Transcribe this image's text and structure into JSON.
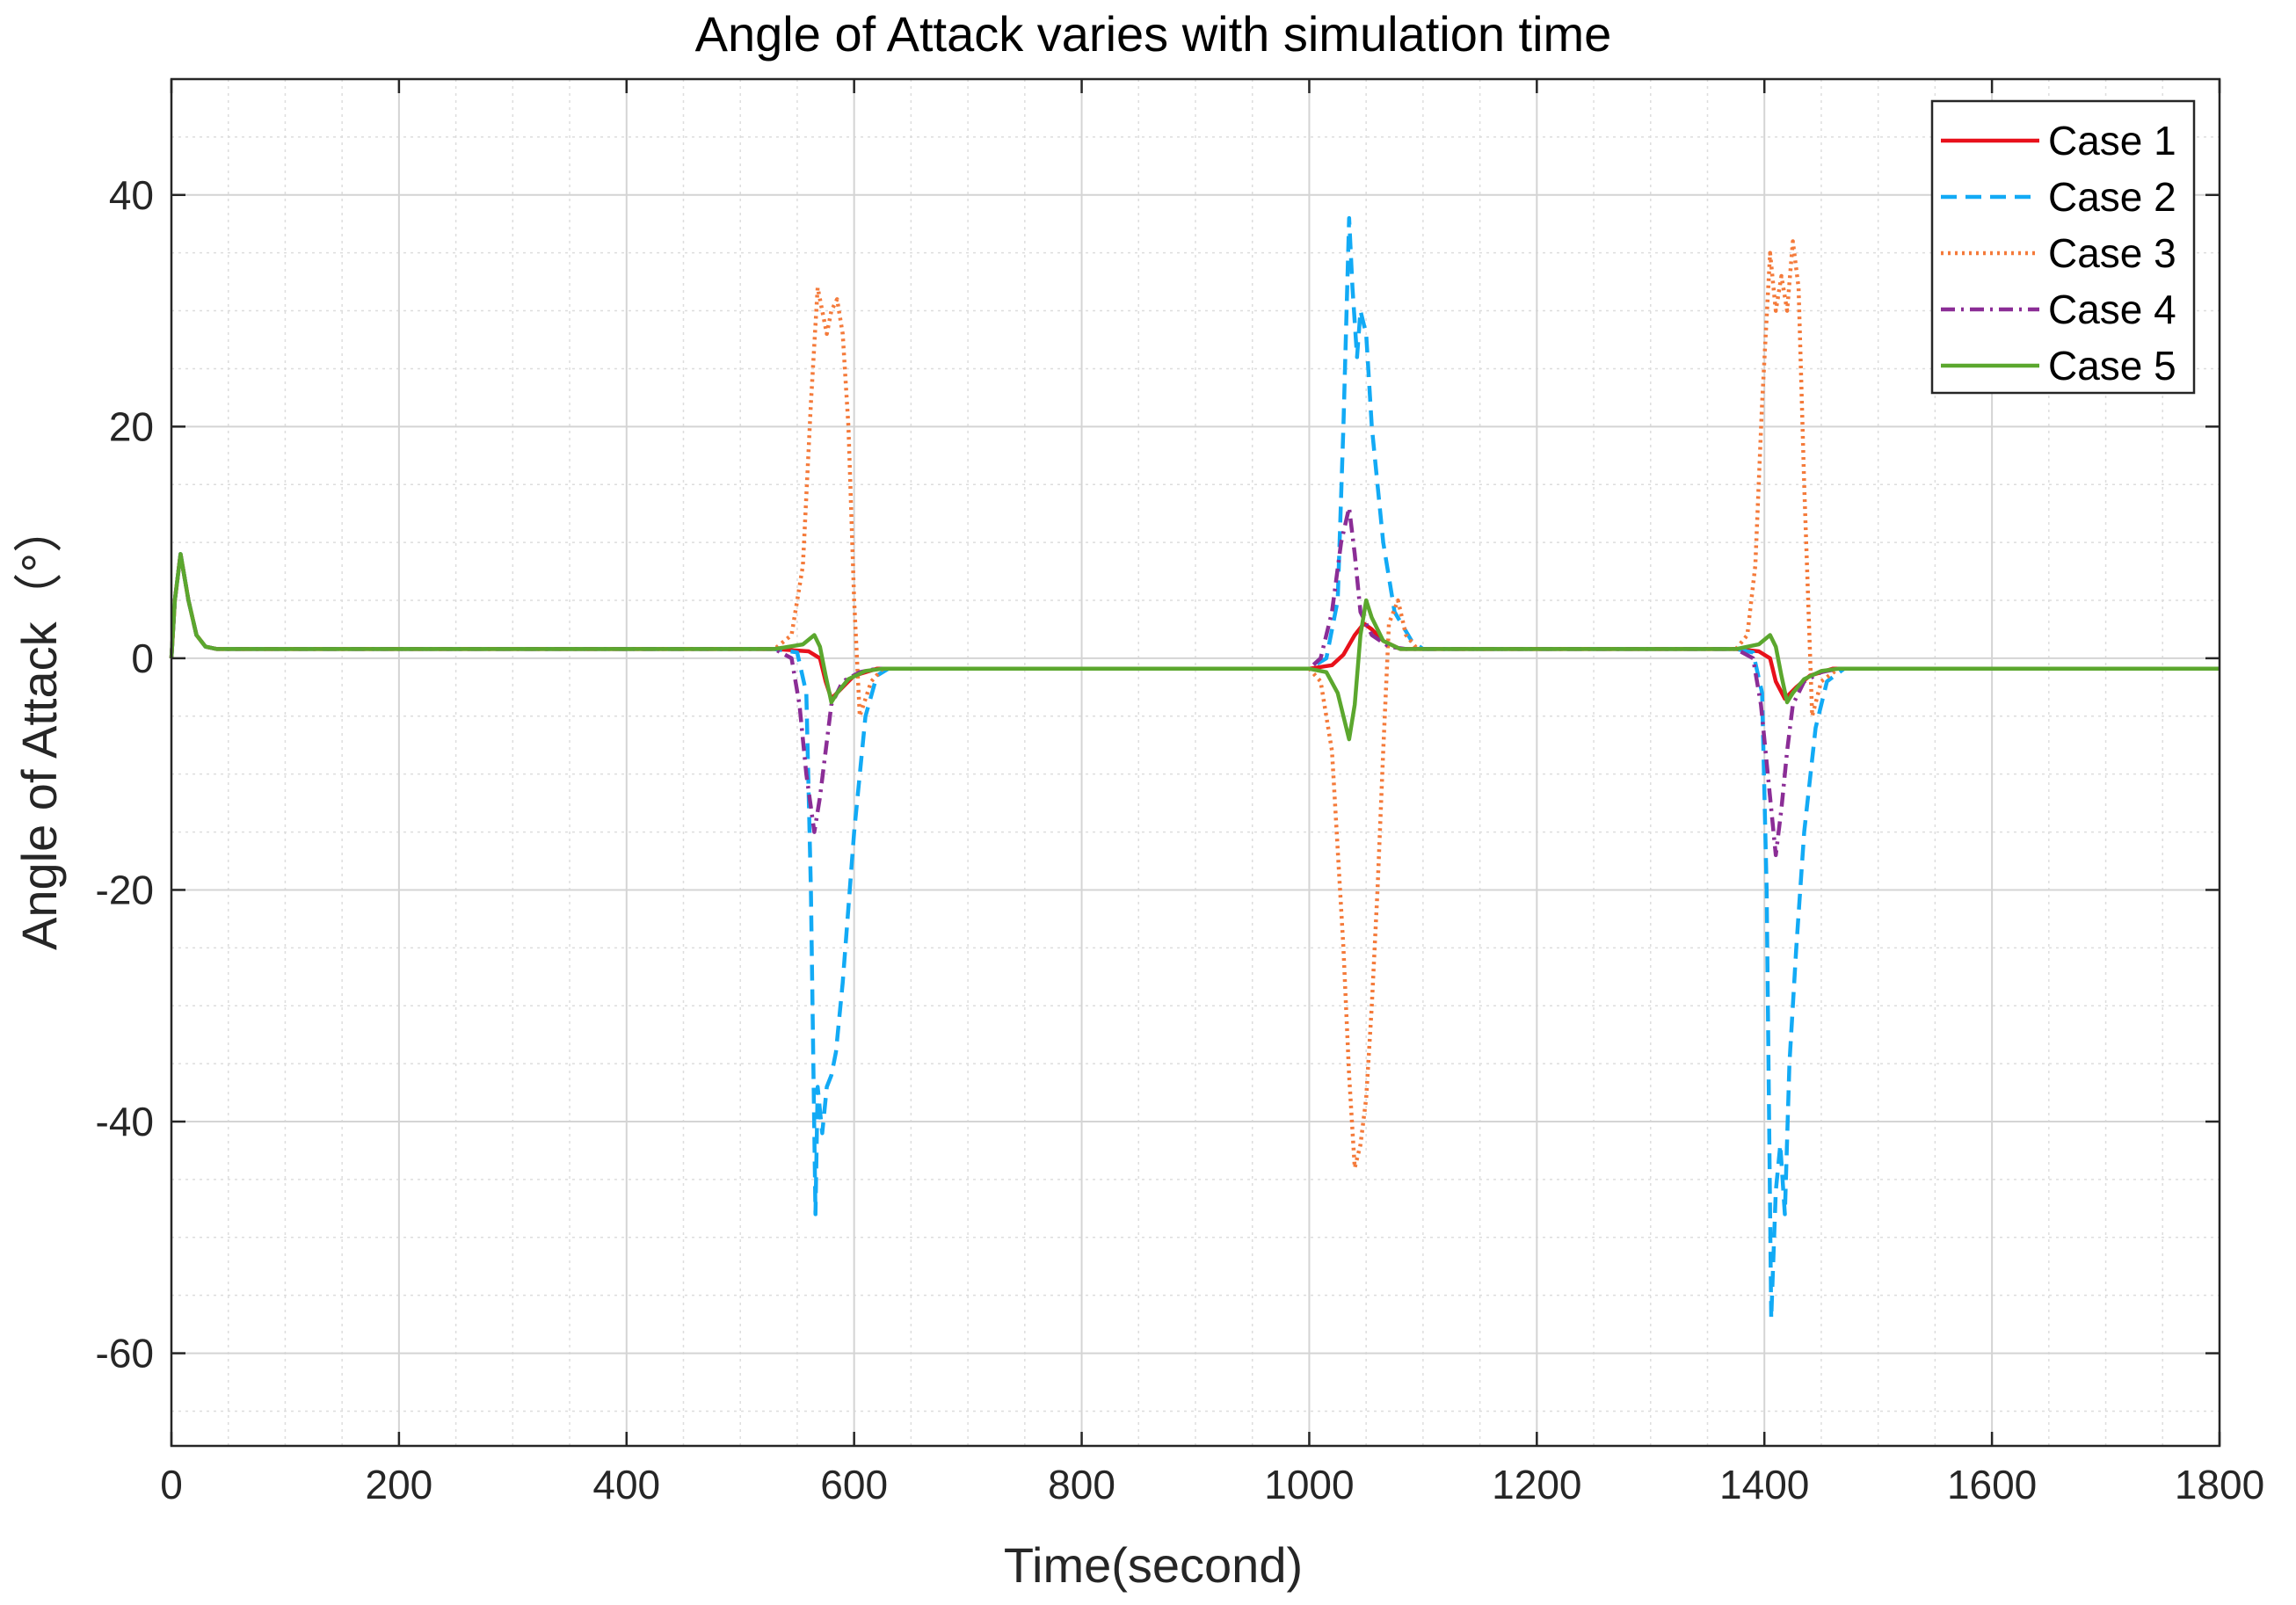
{
  "chart_data": {
    "type": "line",
    "title": "Angle of Attack varies with simulation time",
    "xlabel": "Time(second)",
    "ylabel": "Angle of Attack（°）",
    "xlim": [
      0,
      1800
    ],
    "ylim": [
      -68,
      50
    ],
    "xticks": [
      0,
      200,
      400,
      600,
      800,
      1000,
      1200,
      1400,
      1600,
      1800
    ],
    "yticks": [
      -60,
      -40,
      -20,
      0,
      20,
      40
    ],
    "grid": true,
    "minor_grid": true,
    "legend_position": "top-right",
    "series": [
      {
        "name": "Case 1",
        "color": "#e8111b",
        "dash": "solid",
        "points": [
          [
            0,
            0
          ],
          [
            3,
            5
          ],
          [
            8,
            9
          ],
          [
            15,
            5
          ],
          [
            22,
            2
          ],
          [
            30,
            1
          ],
          [
            40,
            0.8
          ],
          [
            530,
            0.8
          ],
          [
            560,
            0.6
          ],
          [
            570,
            0
          ],
          [
            575,
            -2
          ],
          [
            580,
            -3.5
          ],
          [
            590,
            -2.5
          ],
          [
            600,
            -1.5
          ],
          [
            620,
            -0.9
          ],
          [
            1000,
            -0.9
          ],
          [
            1020,
            -0.6
          ],
          [
            1030,
            0.3
          ],
          [
            1040,
            2
          ],
          [
            1048,
            3
          ],
          [
            1055,
            2.5
          ],
          [
            1065,
            1.5
          ],
          [
            1080,
            0.8
          ],
          [
            1375,
            0.8
          ],
          [
            1395,
            0.6
          ],
          [
            1405,
            0
          ],
          [
            1410,
            -2
          ],
          [
            1418,
            -3.5
          ],
          [
            1428,
            -2.5
          ],
          [
            1440,
            -1.5
          ],
          [
            1460,
            -0.9
          ],
          [
            1800,
            -0.9
          ]
        ]
      },
      {
        "name": "Case 2",
        "color": "#12aaf5",
        "dash": "dashed",
        "points": [
          [
            0,
            0
          ],
          [
            3,
            5
          ],
          [
            8,
            9
          ],
          [
            15,
            5
          ],
          [
            22,
            2
          ],
          [
            30,
            1
          ],
          [
            40,
            0.8
          ],
          [
            530,
            0.8
          ],
          [
            550,
            0.5
          ],
          [
            558,
            -3
          ],
          [
            562,
            -20
          ],
          [
            566,
            -48
          ],
          [
            568,
            -37
          ],
          [
            572,
            -41
          ],
          [
            576,
            -37
          ],
          [
            580,
            -36
          ],
          [
            584,
            -34
          ],
          [
            590,
            -28
          ],
          [
            600,
            -15
          ],
          [
            610,
            -5
          ],
          [
            620,
            -1.5
          ],
          [
            630,
            -0.9
          ],
          [
            1000,
            -0.9
          ],
          [
            1015,
            0
          ],
          [
            1025,
            5
          ],
          [
            1030,
            20
          ],
          [
            1035,
            38
          ],
          [
            1038,
            32
          ],
          [
            1042,
            26
          ],
          [
            1045,
            30
          ],
          [
            1050,
            28
          ],
          [
            1055,
            20
          ],
          [
            1065,
            10
          ],
          [
            1075,
            4
          ],
          [
            1090,
            1.5
          ],
          [
            1100,
            0.8
          ],
          [
            1375,
            0.8
          ],
          [
            1390,
            0.5
          ],
          [
            1398,
            -3
          ],
          [
            1402,
            -20
          ],
          [
            1406,
            -57
          ],
          [
            1410,
            -46
          ],
          [
            1414,
            -42
          ],
          [
            1418,
            -48
          ],
          [
            1422,
            -35
          ],
          [
            1428,
            -25
          ],
          [
            1435,
            -15
          ],
          [
            1445,
            -6
          ],
          [
            1455,
            -2
          ],
          [
            1470,
            -0.9
          ],
          [
            1800,
            -0.9
          ]
        ]
      },
      {
        "name": "Case 3",
        "color": "#f47a3a",
        "dash": "dotted",
        "points": [
          [
            0,
            0
          ],
          [
            3,
            5
          ],
          [
            8,
            9
          ],
          [
            15,
            5
          ],
          [
            22,
            2
          ],
          [
            30,
            1
          ],
          [
            40,
            0.8
          ],
          [
            530,
            0.8
          ],
          [
            545,
            2
          ],
          [
            555,
            8
          ],
          [
            562,
            22
          ],
          [
            568,
            32
          ],
          [
            572,
            30
          ],
          [
            576,
            28
          ],
          [
            580,
            30
          ],
          [
            585,
            31
          ],
          [
            590,
            28
          ],
          [
            595,
            20
          ],
          [
            600,
            5
          ],
          [
            605,
            -5
          ],
          [
            615,
            -2
          ],
          [
            625,
            -0.9
          ],
          [
            1000,
            -0.9
          ],
          [
            1010,
            -2
          ],
          [
            1020,
            -8
          ],
          [
            1030,
            -25
          ],
          [
            1035,
            -36
          ],
          [
            1040,
            -44
          ],
          [
            1045,
            -42
          ],
          [
            1050,
            -38
          ],
          [
            1055,
            -30
          ],
          [
            1060,
            -20
          ],
          [
            1065,
            -8
          ],
          [
            1070,
            3
          ],
          [
            1078,
            5
          ],
          [
            1085,
            2
          ],
          [
            1095,
            0.8
          ],
          [
            1375,
            0.8
          ],
          [
            1385,
            2
          ],
          [
            1392,
            8
          ],
          [
            1398,
            22
          ],
          [
            1405,
            35
          ],
          [
            1410,
            30
          ],
          [
            1415,
            33
          ],
          [
            1420,
            30
          ],
          [
            1425,
            36
          ],
          [
            1430,
            32
          ],
          [
            1435,
            15
          ],
          [
            1442,
            -5
          ],
          [
            1450,
            -2
          ],
          [
            1465,
            -0.9
          ],
          [
            1800,
            -0.9
          ]
        ]
      },
      {
        "name": "Case 4",
        "color": "#8b2d96",
        "dash": "dashdot",
        "points": [
          [
            0,
            0
          ],
          [
            3,
            5
          ],
          [
            8,
            9
          ],
          [
            15,
            5
          ],
          [
            22,
            2
          ],
          [
            30,
            1
          ],
          [
            40,
            0.8
          ],
          [
            530,
            0.8
          ],
          [
            545,
            0
          ],
          [
            552,
            -4
          ],
          [
            558,
            -10
          ],
          [
            565,
            -15
          ],
          [
            570,
            -12
          ],
          [
            575,
            -8
          ],
          [
            580,
            -4
          ],
          [
            590,
            -2
          ],
          [
            605,
            -1.2
          ],
          [
            620,
            -0.9
          ],
          [
            1000,
            -0.9
          ],
          [
            1010,
            0
          ],
          [
            1020,
            4
          ],
          [
            1028,
            10
          ],
          [
            1035,
            13
          ],
          [
            1040,
            9
          ],
          [
            1045,
            4
          ],
          [
            1055,
            2
          ],
          [
            1070,
            1
          ],
          [
            1085,
            0.8
          ],
          [
            1375,
            0.8
          ],
          [
            1390,
            0
          ],
          [
            1397,
            -4
          ],
          [
            1403,
            -10
          ],
          [
            1410,
            -17
          ],
          [
            1415,
            -13
          ],
          [
            1420,
            -8
          ],
          [
            1425,
            -4
          ],
          [
            1435,
            -2
          ],
          [
            1450,
            -1.2
          ],
          [
            1465,
            -0.9
          ],
          [
            1800,
            -0.9
          ]
        ]
      },
      {
        "name": "Case 5",
        "color": "#5ba72e",
        "dash": "solid",
        "points": [
          [
            0,
            0
          ],
          [
            3,
            5
          ],
          [
            8,
            9
          ],
          [
            15,
            5
          ],
          [
            22,
            2
          ],
          [
            30,
            1
          ],
          [
            40,
            0.8
          ],
          [
            530,
            0.8
          ],
          [
            555,
            1.2
          ],
          [
            565,
            2
          ],
          [
            570,
            1
          ],
          [
            575,
            -1.5
          ],
          [
            580,
            -3.8
          ],
          [
            585,
            -3
          ],
          [
            595,
            -1.8
          ],
          [
            610,
            -1.1
          ],
          [
            625,
            -0.9
          ],
          [
            1000,
            -0.9
          ],
          [
            1015,
            -1.2
          ],
          [
            1025,
            -3
          ],
          [
            1035,
            -7
          ],
          [
            1040,
            -4
          ],
          [
            1045,
            2
          ],
          [
            1050,
            5
          ],
          [
            1055,
            3.5
          ],
          [
            1065,
            1.5
          ],
          [
            1080,
            0.8
          ],
          [
            1375,
            0.8
          ],
          [
            1395,
            1.2
          ],
          [
            1405,
            2
          ],
          [
            1410,
            1
          ],
          [
            1415,
            -1.5
          ],
          [
            1420,
            -3.8
          ],
          [
            1425,
            -3
          ],
          [
            1435,
            -1.8
          ],
          [
            1450,
            -1.1
          ],
          [
            1465,
            -0.9
          ],
          [
            1800,
            -0.9
          ]
        ]
      }
    ]
  }
}
